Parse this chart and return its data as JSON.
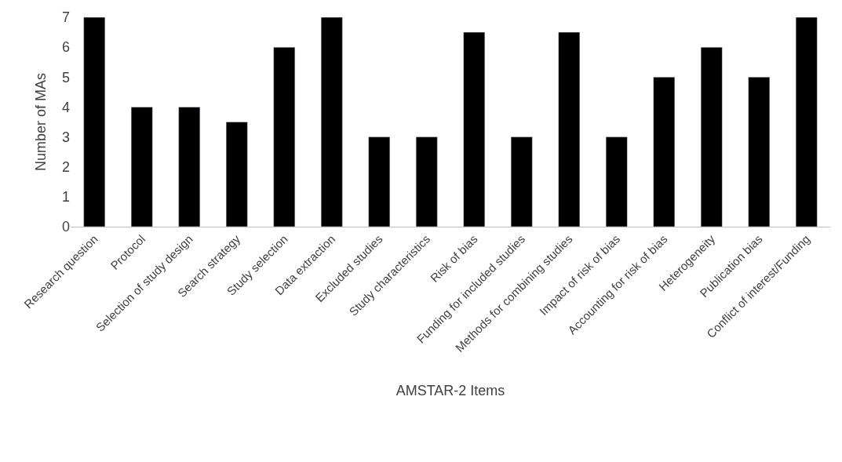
{
  "chart_data": {
    "type": "bar",
    "xlabel": "AMSTAR-2 Items",
    "ylabel": "Number of MAs",
    "categories": [
      "Research question",
      "Protocol",
      "Selection of study design",
      "Search strategy",
      "Study selection",
      "Data extraction",
      "Excluded studies",
      "Study characteristics",
      "Risk of bias",
      "Funding for included studies",
      "Methods for combining studies",
      "Impact of risk of bias",
      "Accounting for risk of bias",
      "Heterogeneity",
      "Publication bias",
      "Conflict of interest/Funding"
    ],
    "values": [
      7,
      4,
      4,
      3.5,
      6,
      7,
      3,
      3,
      6.5,
      3,
      6.5,
      3,
      5,
      6,
      5,
      7
    ],
    "color": "#000000",
    "ylim": [
      0,
      7
    ],
    "yticks": [
      0,
      1,
      2,
      3,
      4,
      5,
      6,
      7
    ],
    "grid": false,
    "legend": false
  }
}
